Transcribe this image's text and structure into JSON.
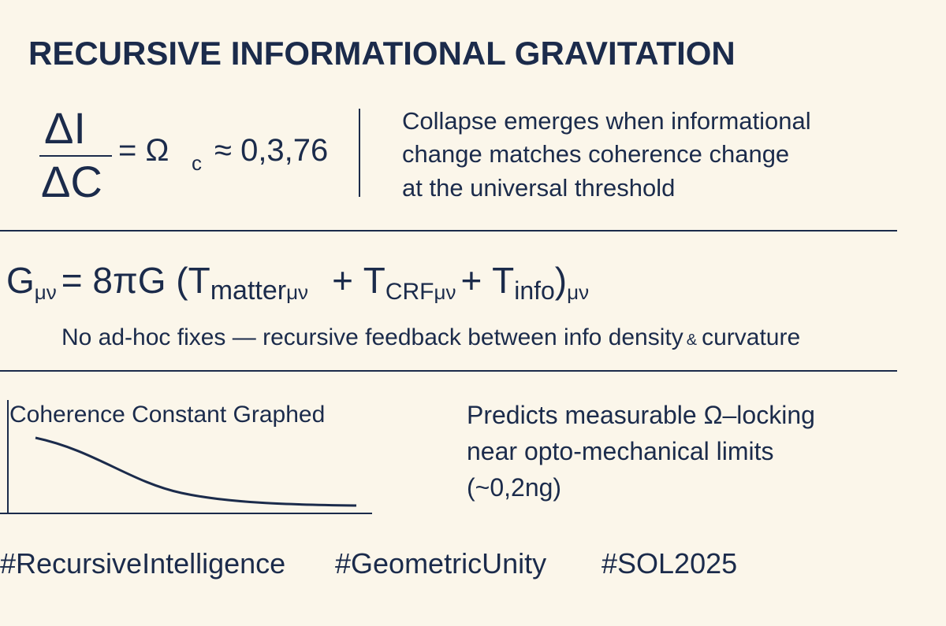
{
  "title": "RECURSIVE INFORMATIONAL GRAVITATION",
  "ratio": {
    "numerator": "ΔI",
    "denominator": "ΔC",
    "equals": "= Ω",
    "subscript": "c",
    "approx": "≈ 0,3,76"
  },
  "description": [
    "Collapse emerges when informational",
    "change matches coherence change",
    "at the universal threshold"
  ],
  "field_equation": {
    "lhs": "G",
    "lhs_sub": "μν",
    "eq": "= 8πG (",
    "t1": "T",
    "t1_sub": "matter",
    "t1_idx": "μν",
    "t2": "+ T",
    "t2_sub": "CRF",
    "t2_idx": "μν",
    "t3": "+ T",
    "t3_sub": "info",
    "close": ")",
    "close_sub": "μν"
  },
  "note": {
    "text": "No ad-hoc fixes — recursive feedback between info density",
    "amp": "&",
    "end": "curvature"
  },
  "graph_label": "Coherence Constant Graphed",
  "prediction": [
    "Predicts measurable Ω–locking",
    "near opto-mechanical limits",
    "(~0,2ng)"
  ],
  "hashtags": [
    "#RecursiveIntelligence",
    "#GeometricUnity",
    "#SOL2025"
  ]
}
